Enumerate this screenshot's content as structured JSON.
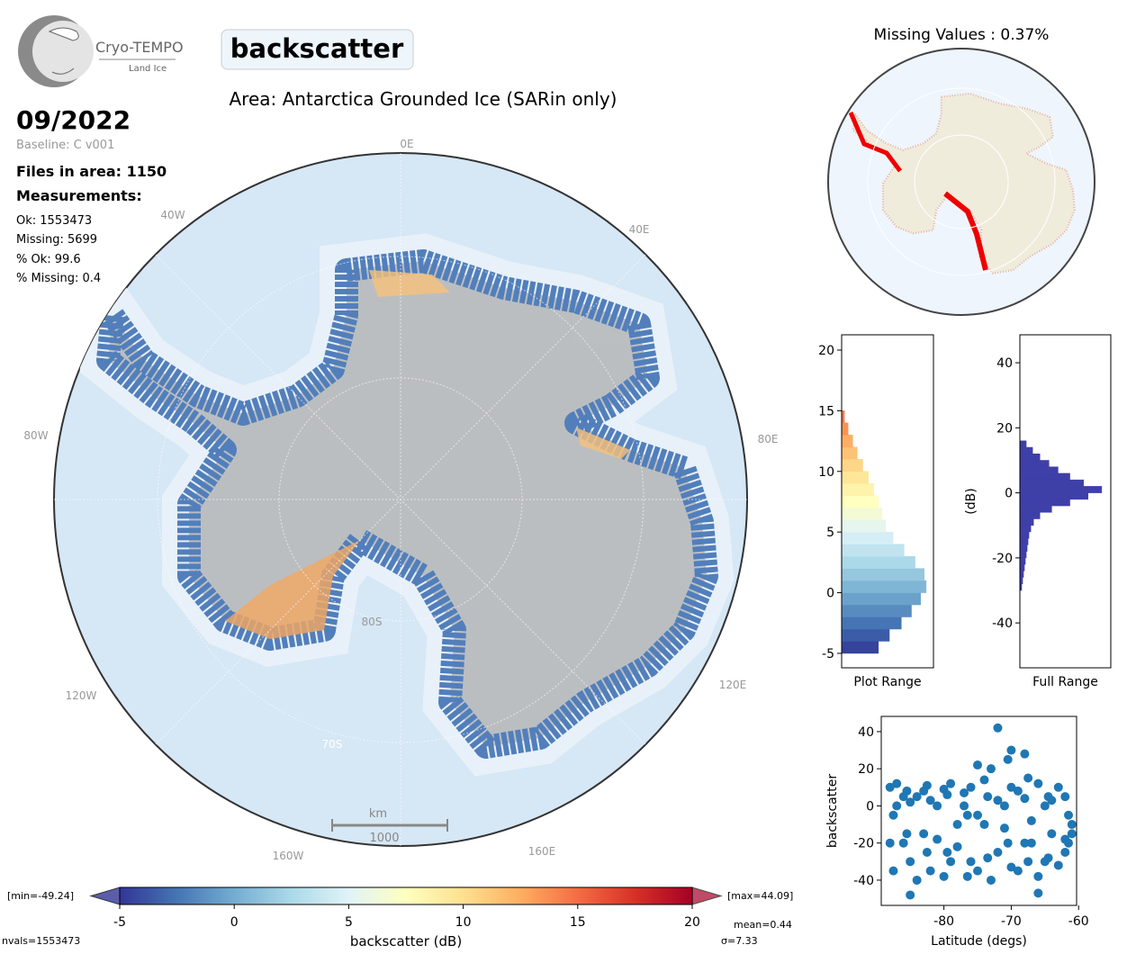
{
  "header": {
    "logo_title": "Cryo-TEMPO",
    "logo_subtitle": "Land Ice",
    "parameter": "backscatter",
    "area": "Area: Antarctica Grounded Ice (SARin only)",
    "date": "09/2022",
    "baseline": "Baseline: C v001",
    "files": "Files in area: 1150",
    "measurements": "Measurements:",
    "ok": "Ok: 1553473",
    "missing": "Missing: 5699",
    "pct_ok": "% Ok: 99.6",
    "pct_missing": "% Missing: 0.4"
  },
  "map": {
    "lon_labels": [
      "0E",
      "40E",
      "80E",
      "120E",
      "160E",
      "160W",
      "120W",
      "80W",
      "40W"
    ],
    "lat_labels": [
      "80S",
      "70S"
    ],
    "scale_unit": "km",
    "scale_length": "1000",
    "inset_title": "Missing Values : 0.37%"
  },
  "chart_data": [
    {
      "type": "colorbar",
      "xlabel": "backscatter (dB)",
      "xlim": [
        -5,
        20
      ],
      "xticks": [
        -5,
        0,
        5,
        10,
        15,
        20
      ],
      "colors": [
        "#313695",
        "#4575b4",
        "#74add1",
        "#abd9e9",
        "#e0f3f8",
        "#ffffbf",
        "#fee090",
        "#fdae61",
        "#f46d43",
        "#d73027",
        "#a50026"
      ],
      "min_label": "[min=-49.24]",
      "max_label": "[max=44.09]",
      "mean_label": "mean=0.44",
      "std_label": "σ=7.33",
      "nvals_label": "nvals=1553473"
    },
    {
      "type": "histogram",
      "orientation": "horizontal",
      "xlabel": "Plot Range",
      "color": "colormap",
      "bins": [
        -5,
        -4,
        -3,
        -2,
        -1,
        0,
        1,
        2,
        3,
        4,
        5,
        6,
        7,
        8,
        9,
        10,
        11,
        12,
        13,
        14,
        15
      ],
      "counts": [
        40,
        52,
        65,
        76,
        86,
        92,
        90,
        80,
        68,
        56,
        48,
        44,
        40,
        35,
        29,
        23,
        17,
        12,
        7,
        3
      ],
      "xlim": [
        0,
        100
      ],
      "ylim": [
        -6.19,
        21.26
      ],
      "yticks": [
        -5,
        0,
        5,
        10,
        15,
        20
      ]
    },
    {
      "type": "histogram",
      "orientation": "horizontal",
      "xlabel": "Full Range",
      "ylabel": "(dB)",
      "color": "#3f3fa8",
      "bins": [
        -30,
        -28,
        -26,
        -24,
        -22,
        -20,
        -18,
        -16,
        -14,
        -12,
        -10,
        -8,
        -6,
        -4,
        -2,
        0,
        2,
        4,
        6,
        8,
        10,
        12,
        14,
        16
      ],
      "counts": [
        2,
        3,
        4,
        5,
        6,
        7,
        8,
        9,
        10,
        12,
        15,
        22,
        35,
        55,
        75,
        90,
        70,
        55,
        42,
        32,
        22,
        14,
        7
      ],
      "xlim": [
        0,
        100
      ],
      "ylim": [
        -53.8,
        48.6
      ],
      "yticks": [
        -40,
        -20,
        0,
        20,
        40
      ]
    },
    {
      "type": "scatter",
      "xlabel": "Latitude (degs)",
      "ylabel": "backscatter",
      "color": "#1f77b4",
      "x": [
        -88,
        -87.5,
        -87,
        -86,
        -85.5,
        -85,
        -84,
        -83,
        -82.5,
        -82,
        -81,
        -80,
        -79.5,
        -79,
        -78,
        -77,
        -76.5,
        -76,
        -75,
        -74,
        -73.5,
        -73,
        -72,
        -71,
        -70.5,
        -70,
        -69,
        -68,
        -67.5,
        -67,
        -66,
        -65,
        -64.5,
        -64,
        -63,
        -62,
        -61.5,
        -61,
        -88,
        -87.5,
        -87,
        -86,
        -85.5,
        -85,
        -84,
        -83,
        -82.5,
        -82,
        -81,
        -80,
        -79.5,
        -79,
        -78,
        -77,
        -76.5,
        -76,
        -75,
        -74,
        -73.5,
        -73,
        -72,
        -71,
        -70.5,
        -70,
        -69,
        -68,
        -67.5,
        -67,
        -66,
        -65,
        -64.5,
        -64,
        -63,
        -62,
        -61.5,
        -61,
        -72,
        -70,
        -68,
        -75,
        -85,
        -66,
        -62
      ],
      "y": [
        10,
        -5,
        12,
        -20,
        8,
        -30,
        5,
        -15,
        11,
        -35,
        0,
        9,
        -25,
        12,
        -10,
        7,
        -38,
        10,
        -5,
        14,
        -28,
        20,
        3,
        -12,
        25,
        -33,
        8,
        -20,
        15,
        -8,
        12,
        -30,
        5,
        -15,
        10,
        -25,
        -5,
        -15,
        -20,
        -35,
        0,
        5,
        -15,
        2,
        -40,
        8,
        -25,
        3,
        -18,
        -38,
        6,
        -30,
        -22,
        0,
        -5,
        -30,
        -35,
        -10,
        5,
        -40,
        -25,
        0,
        -20,
        10,
        -35,
        4,
        -30,
        -20,
        -38,
        0,
        -28,
        3,
        -32,
        5,
        -20,
        -10,
        42,
        30,
        28,
        22,
        -48,
        -47,
        -18
      ],
      "xlim": [
        -89.3,
        -60.3
      ],
      "xticks": [
        -80,
        -70,
        -60
      ],
      "ylim": [
        -53.6,
        48.2
      ],
      "yticks": [
        -40,
        -20,
        0,
        20,
        40
      ]
    }
  ]
}
